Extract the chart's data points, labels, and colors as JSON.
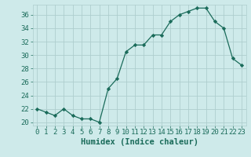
{
  "x": [
    0,
    1,
    2,
    3,
    4,
    5,
    6,
    7,
    8,
    9,
    10,
    11,
    12,
    13,
    14,
    15,
    16,
    17,
    18,
    19,
    20,
    21,
    22,
    23
  ],
  "y": [
    22,
    21.5,
    21,
    22,
    21,
    20.5,
    20.5,
    20,
    25,
    26.5,
    30.5,
    31.5,
    31.5,
    33,
    33,
    35,
    36,
    36.5,
    37,
    37,
    35,
    34,
    29.5,
    28.5
  ],
  "line_color": "#1a6b5a",
  "marker": "D",
  "marker_size": 2.2,
  "background_color": "#ceeaea",
  "grid_color": "#aecece",
  "xlabel": "Humidex (Indice chaleur)",
  "ylim": [
    19.5,
    37.5
  ],
  "xlim": [
    -0.5,
    23.5
  ],
  "yticks": [
    20,
    22,
    24,
    26,
    28,
    30,
    32,
    34,
    36
  ],
  "xtick_labels": [
    "0",
    "1",
    "2",
    "3",
    "4",
    "5",
    "6",
    "7",
    "8",
    "9",
    "10",
    "11",
    "12",
    "13",
    "14",
    "15",
    "16",
    "17",
    "18",
    "19",
    "20",
    "21",
    "22",
    "23"
  ],
  "label_color": "#1a6b5a",
  "fontsize_ticks": 6.5,
  "fontsize_label": 7.5
}
